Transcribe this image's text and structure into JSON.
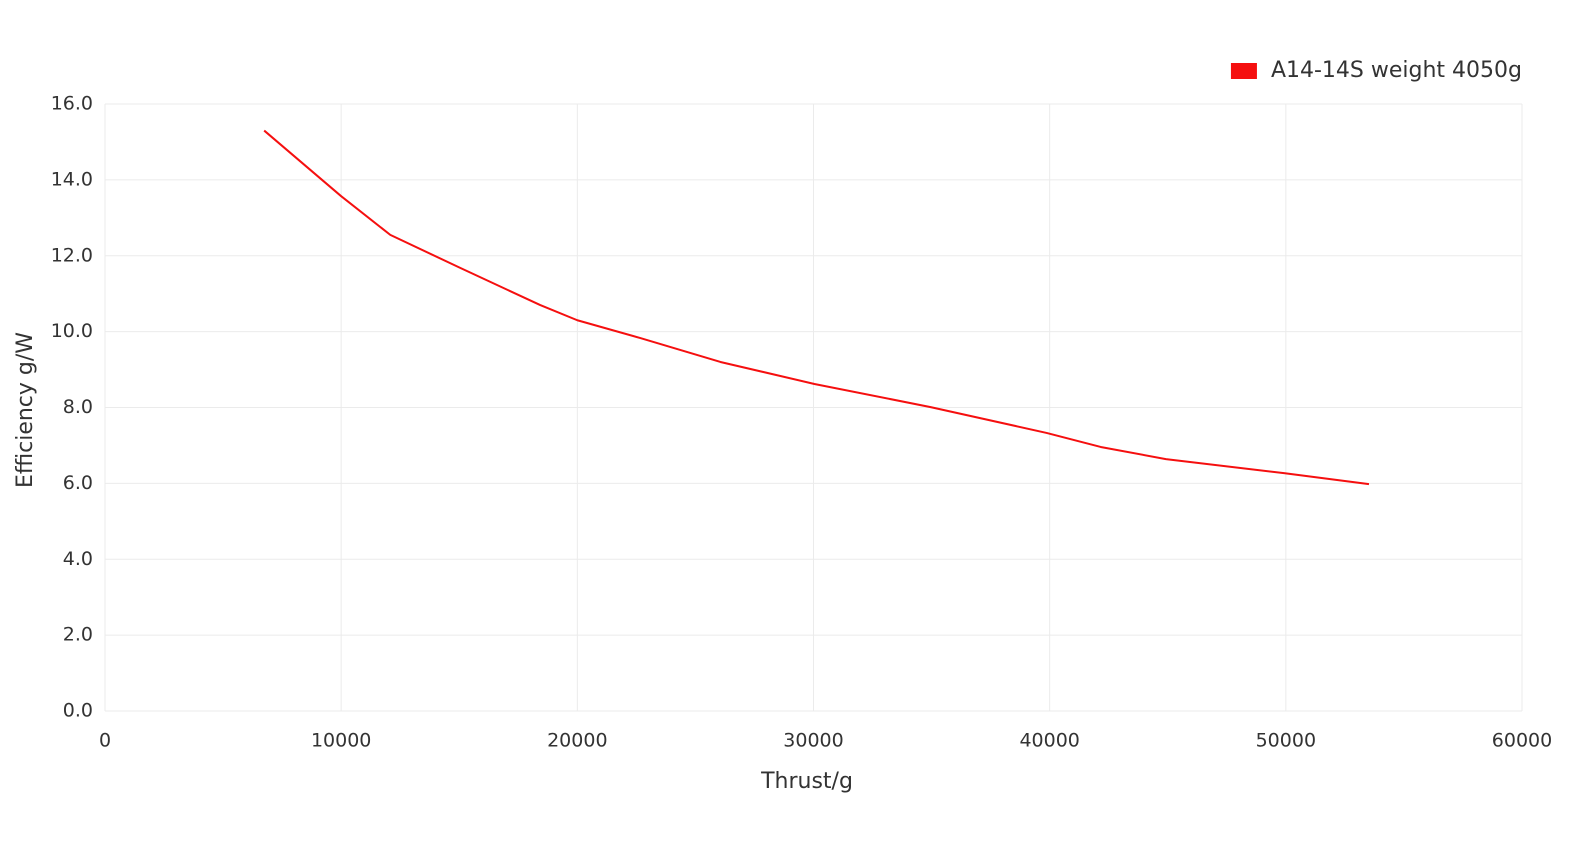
{
  "chart_data": {
    "type": "line",
    "xlabel": "Thrust/g",
    "ylabel": "Efficiency g/W",
    "legend_position": "upper right",
    "grid": true,
    "xlim": [
      0,
      60000
    ],
    "xticks": [
      0,
      10000,
      20000,
      30000,
      40000,
      50000,
      60000
    ],
    "ylim": [
      0,
      16
    ],
    "yticks": [
      {
        "value": 0,
        "label": "0.0"
      },
      {
        "value": 2,
        "label": "2.0"
      },
      {
        "value": 4,
        "label": "4.0"
      },
      {
        "value": 6,
        "label": "6.0"
      },
      {
        "value": 8,
        "label": "8.0"
      },
      {
        "value": 10,
        "label": "10.0"
      },
      {
        "value": 12,
        "label": "12.0"
      },
      {
        "value": 14,
        "label": "14.0"
      },
      {
        "value": 16,
        "label": "16.0"
      }
    ],
    "series": [
      {
        "name": "A14-14S weight 4050g",
        "color": "#f50f0f",
        "x": [
          6740,
          10000,
          12080,
          15040,
          18430,
          20000,
          22670,
          26060,
          30040,
          34960,
          39870,
          42160,
          44920,
          49920,
          53520
        ],
        "values": [
          15.3,
          13.57,
          12.55,
          11.68,
          10.7,
          10.3,
          9.83,
          9.2,
          8.62,
          8.01,
          7.33,
          6.96,
          6.64,
          6.27,
          5.98
        ]
      }
    ]
  }
}
